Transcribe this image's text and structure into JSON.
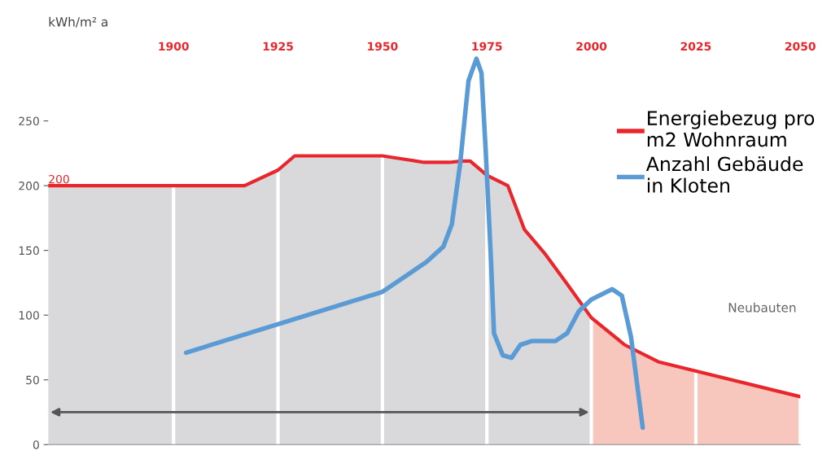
{
  "chart_data": {
    "type": "line",
    "ylabel": "kWh/m² a",
    "xlim": [
      1870,
      2050
    ],
    "xticks": [
      1900,
      1925,
      1950,
      1975,
      2000,
      2025,
      2050
    ],
    "ylim": [
      0,
      300
    ],
    "yticks": [
      0,
      50,
      100,
      150,
      200,
      250
    ],
    "grid": "x",
    "legend": "top right",
    "series": [
      {
        "type": "area",
        "color": "#d9d9db",
        "x": [
          1870,
          1900,
          1917,
          1925,
          1929,
          1950,
          1956,
          1960,
          1966,
          1969,
          1971,
          1975,
          1980,
          1984,
          1989,
          1994,
          2000
        ],
        "values": [
          200,
          200,
          200,
          212,
          223,
          223,
          220,
          218,
          218,
          219,
          219,
          208,
          200,
          166,
          147,
          125,
          98
        ]
      },
      {
        "type": "area",
        "color": "#f7c6bd",
        "x": [
          2000,
          2008,
          2016,
          2050
        ],
        "values": [
          98,
          77,
          64,
          37
        ]
      },
      {
        "name": "Energiebezug pro\nm2 Wohnraum",
        "color": "#e8262b",
        "x": [
          1870,
          1900,
          1917,
          1925,
          1929,
          1950,
          1956,
          1960,
          1966,
          1969,
          1971,
          1975,
          1980,
          1984,
          1989,
          1994,
          2000,
          2008,
          2016,
          2050
        ],
        "values": [
          200,
          200,
          200,
          212,
          223,
          223,
          220,
          218,
          218,
          219,
          219,
          208,
          200,
          166,
          147,
          125,
          98,
          77,
          64,
          37
        ]
      },
      {
        "name": "Anzahl Gebäude\nin Kloten",
        "color": "#5b9bd5",
        "x": [
          1903,
          1950,
          1960.5,
          1964.6,
          1966.6,
          1968.6,
          1970.6,
          1972.5,
          1973.7,
          1974.7,
          1976,
          1976.7,
          1978.8,
          1980.9,
          1983,
          1985.8,
          1991.4,
          1994.2,
          1997,
          2000,
          2005,
          2007.3,
          2009.5,
          2012.3
        ],
        "values": [
          71,
          118,
          141,
          153,
          170,
          217,
          281,
          298,
          287,
          228,
          141,
          86,
          69,
          67,
          77,
          80,
          80,
          86,
          103,
          112,
          120,
          115,
          83,
          13
        ]
      }
    ],
    "annotations": [
      {
        "text": "200",
        "x": 1870,
        "y": 200
      },
      "Neubauten"
    ]
  }
}
